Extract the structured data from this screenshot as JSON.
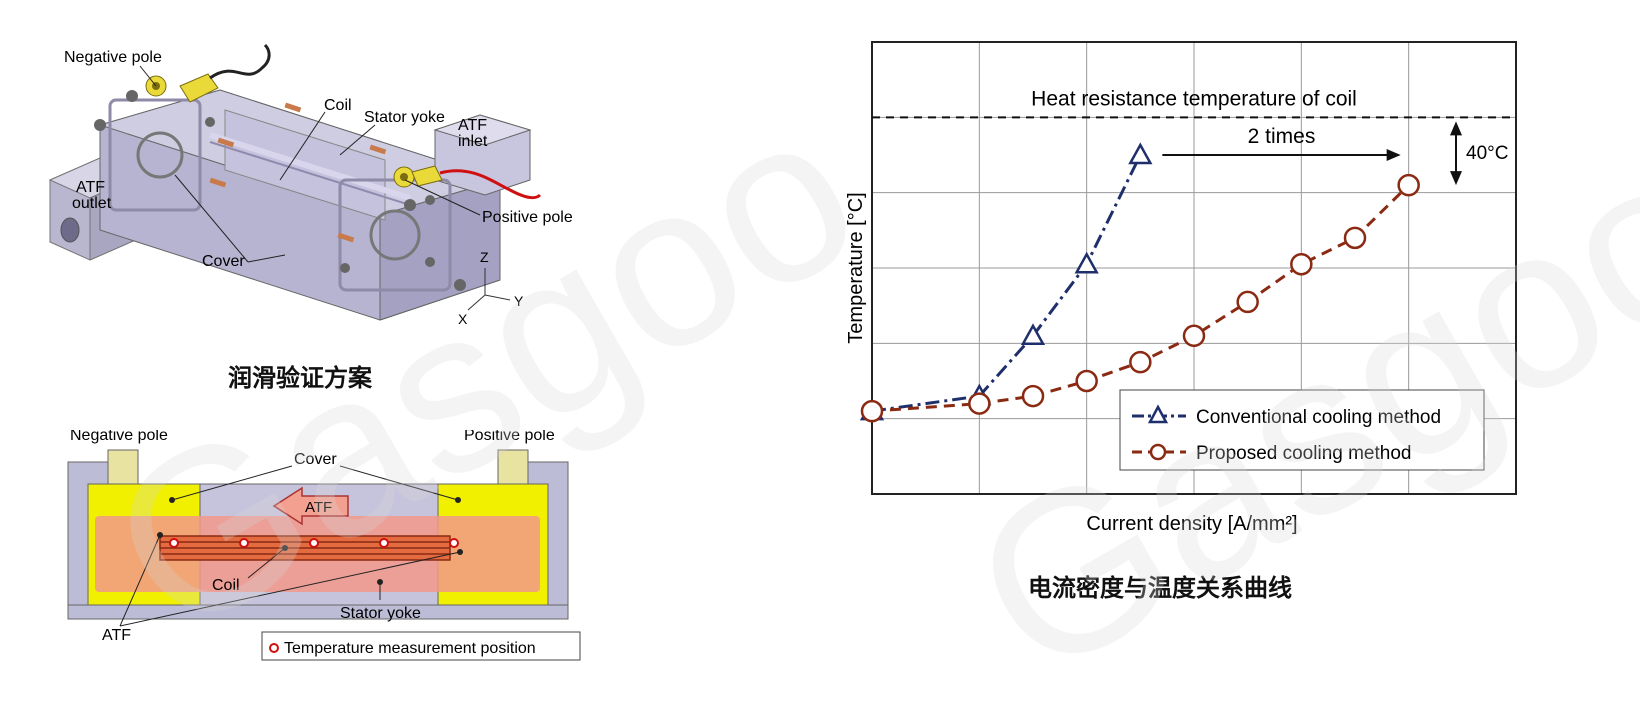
{
  "iso_diagram": {
    "labels": {
      "negative_pole": "Negative pole",
      "coil": "Coil",
      "stator_yoke": "Stator yoke",
      "atf_inlet_1": "ATF",
      "atf_inlet_2": "inlet",
      "atf_outlet_1": "ATF",
      "atf_outlet_2": "outlet",
      "positive_pole": "Positive pole",
      "cover": "Cover",
      "axis_z": "Z",
      "axis_y": "Y",
      "axis_x": "X"
    },
    "caption": "润滑验证方案"
  },
  "section_diagram": {
    "labels": {
      "negative_pole": "Negative pole",
      "positive_pole": "Positive pole",
      "cover": "Cover",
      "atf_arrow": "ATF",
      "coil": "Coil",
      "stator_yoke": "Stator yoke",
      "atf": "ATF"
    },
    "legend": "Temperature measurement position"
  },
  "chart_data": {
    "type": "line",
    "title": "电流密度与温度关系曲线",
    "xlabel": "Current density [A/mm²]",
    "ylabel": "Temperature [°C]",
    "xlim": [
      0,
      6
    ],
    "ylim": [
      0,
      6
    ],
    "grid": true,
    "legend_position": "bottom-right",
    "reference_line": {
      "label": "Heat resistance temperature of coil",
      "y": 5
    },
    "annotations": {
      "two_times": "2 times",
      "delta": "40°C"
    },
    "series": [
      {
        "name": "Conventional cooling method",
        "color": "#1f2f6b",
        "marker": "triangle",
        "x": [
          0,
          1,
          1.5,
          2,
          2.5
        ],
        "y": [
          1.1,
          1.3,
          2.1,
          3.05,
          4.5
        ]
      },
      {
        "name": "Proposed cooling method",
        "color": "#8a2a12",
        "marker": "circle",
        "x": [
          0,
          1,
          1.5,
          2,
          2.5,
          3,
          3.5,
          4,
          4.5,
          5
        ],
        "y": [
          1.1,
          1.2,
          1.3,
          1.5,
          1.75,
          2.1,
          2.55,
          3.05,
          3.4,
          4.1
        ]
      }
    ]
  }
}
